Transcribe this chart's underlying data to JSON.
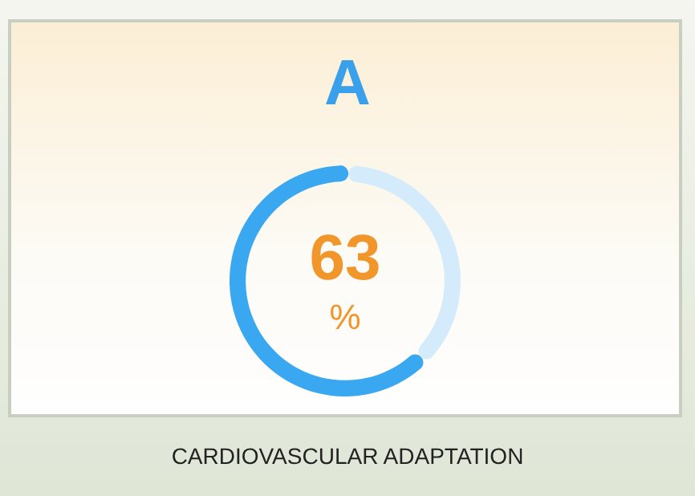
{
  "chart_data": {
    "type": "donut",
    "title": "A",
    "categories": [
      null,
      null
    ],
    "values": [
      63,
      37
    ],
    "colors": [
      "#3aa8f0",
      "#d4ebfb"
    ],
    "value_labels": [
      "63",
      null
    ],
    "annotations": [
      "%",
      "CARDIOVASCULAR ADAPTATION"
    ]
  }
}
